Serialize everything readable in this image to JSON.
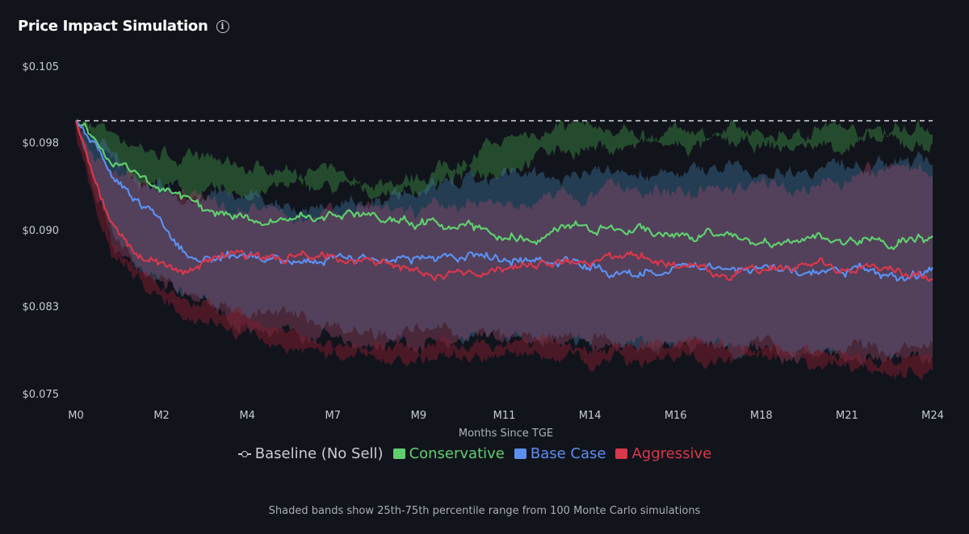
{
  "header": {
    "title": "Price Impact Simulation",
    "info_icon": "info-icon"
  },
  "chart_data": {
    "type": "area",
    "title": "Price Impact Simulation",
    "xlabel": "Months Since TGE",
    "ylabel": "",
    "x_months": [
      0,
      24
    ],
    "ylim": [
      0.075,
      0.105
    ],
    "y_ticks": [
      0.105,
      0.098,
      0.09,
      0.083,
      0.075
    ],
    "y_tick_labels": [
      "$0.105",
      "$0.098",
      "$0.090",
      "$0.083",
      "$0.075"
    ],
    "x_tick_labels": [
      "M0",
      "M2",
      "M4",
      "M7",
      "M9",
      "M11",
      "M14",
      "M16",
      "M18",
      "M21",
      "M24"
    ],
    "grid": false,
    "legend_position": "bottom",
    "baseline": {
      "name": "Baseline (No Sell)",
      "value": 0.1,
      "color": "#c9ccd3"
    },
    "series": [
      {
        "name": "Conservative",
        "color": "#5fcf6e",
        "months": [
          0,
          1,
          2,
          3,
          4,
          5,
          6,
          7,
          8,
          9,
          10,
          11,
          12,
          13,
          14,
          15,
          16,
          17,
          18,
          19,
          20,
          21,
          22,
          23,
          24
        ],
        "median": [
          0.1,
          0.0965,
          0.0945,
          0.093,
          0.0915,
          0.0912,
          0.091,
          0.0915,
          0.0918,
          0.091,
          0.0905,
          0.0902,
          0.0895,
          0.0892,
          0.0903,
          0.0905,
          0.09,
          0.0898,
          0.0892,
          0.089,
          0.089,
          0.089,
          0.0895,
          0.0885,
          0.0895
        ],
        "p75": [
          0.1,
          0.099,
          0.0975,
          0.0965,
          0.096,
          0.0958,
          0.0955,
          0.095,
          0.0945,
          0.0945,
          0.0955,
          0.0968,
          0.098,
          0.0992,
          0.1,
          0.099,
          0.0985,
          0.0995,
          0.099,
          0.0985,
          0.099,
          0.0995,
          0.099,
          0.0995,
          0.0995
        ],
        "p25": [
          0.1,
          0.096,
          0.0945,
          0.0935,
          0.093,
          0.0935,
          0.094,
          0.0938,
          0.0935,
          0.0935,
          0.094,
          0.095,
          0.096,
          0.097,
          0.0975,
          0.0975,
          0.0978,
          0.0975,
          0.0978,
          0.0975,
          0.0975,
          0.0978,
          0.098,
          0.0978,
          0.0978
        ]
      },
      {
        "name": "Base Case",
        "color": "#5b8ff0",
        "months": [
          0,
          1,
          2,
          3,
          4,
          5,
          6,
          7,
          8,
          9,
          10,
          11,
          12,
          13,
          14,
          15,
          16,
          17,
          18,
          19,
          20,
          21,
          22,
          23,
          24
        ],
        "median": [
          0.1,
          0.095,
          0.092,
          0.088,
          0.0868,
          0.0875,
          0.0872,
          0.0875,
          0.0875,
          0.0875,
          0.0872,
          0.0875,
          0.0875,
          0.0873,
          0.087,
          0.086,
          0.0862,
          0.0865,
          0.0868,
          0.0865,
          0.0862,
          0.086,
          0.0862,
          0.0858,
          0.0862
        ],
        "p75": [
          0.1,
          0.097,
          0.095,
          0.0935,
          0.093,
          0.0928,
          0.0925,
          0.0922,
          0.0925,
          0.093,
          0.0935,
          0.094,
          0.0945,
          0.095,
          0.0955,
          0.0955,
          0.095,
          0.0955,
          0.0958,
          0.0955,
          0.0958,
          0.096,
          0.0962,
          0.096,
          0.0965
        ],
        "p25": [
          0.1,
          0.09,
          0.086,
          0.084,
          0.083,
          0.0825,
          0.082,
          0.0815,
          0.081,
          0.0808,
          0.0805,
          0.0805,
          0.08,
          0.08,
          0.0798,
          0.0795,
          0.0795,
          0.0795,
          0.0792,
          0.0795,
          0.0793,
          0.079,
          0.079,
          0.079,
          0.0788
        ]
      },
      {
        "name": "Aggressive",
        "color": "#d9374b",
        "months": [
          0,
          1,
          2,
          3,
          4,
          5,
          6,
          7,
          8,
          9,
          10,
          11,
          12,
          13,
          14,
          15,
          16,
          17,
          18,
          19,
          20,
          21,
          22,
          23,
          24
        ],
        "median": [
          0.1,
          0.09,
          0.087,
          0.0865,
          0.087,
          0.0872,
          0.0875,
          0.0878,
          0.087,
          0.0868,
          0.0862,
          0.0862,
          0.0865,
          0.0868,
          0.087,
          0.0872,
          0.0874,
          0.0865,
          0.0862,
          0.0866,
          0.0865,
          0.0865,
          0.0864,
          0.0862,
          0.0858
        ],
        "p75": [
          0.1,
          0.096,
          0.0935,
          0.0925,
          0.092,
          0.092,
          0.0918,
          0.0915,
          0.0915,
          0.0915,
          0.0918,
          0.092,
          0.0925,
          0.0928,
          0.093,
          0.0932,
          0.0935,
          0.0935,
          0.0937,
          0.094,
          0.094,
          0.0945,
          0.095,
          0.0955,
          0.096
        ],
        "p25": [
          0.1,
          0.089,
          0.086,
          0.084,
          0.0825,
          0.081,
          0.0805,
          0.08,
          0.0795,
          0.0793,
          0.0795,
          0.0797,
          0.0798,
          0.0797,
          0.0795,
          0.0793,
          0.0795,
          0.0795,
          0.0792,
          0.079,
          0.0788,
          0.0787,
          0.0785,
          0.0782,
          0.078
        ]
      }
    ]
  },
  "legend": {
    "items": [
      {
        "label": "Baseline (No Sell)",
        "color": "#c9ccd3",
        "kind": "line"
      },
      {
        "label": "Conservative",
        "color": "#5fcf6e",
        "kind": "box"
      },
      {
        "label": "Base Case",
        "color": "#5b8ff0",
        "kind": "box"
      },
      {
        "label": "Aggressive",
        "color": "#d9374b",
        "kind": "box"
      }
    ]
  },
  "footnote": "Shaded bands show 25th-75th percentile range from 100 Monte Carlo simulations"
}
